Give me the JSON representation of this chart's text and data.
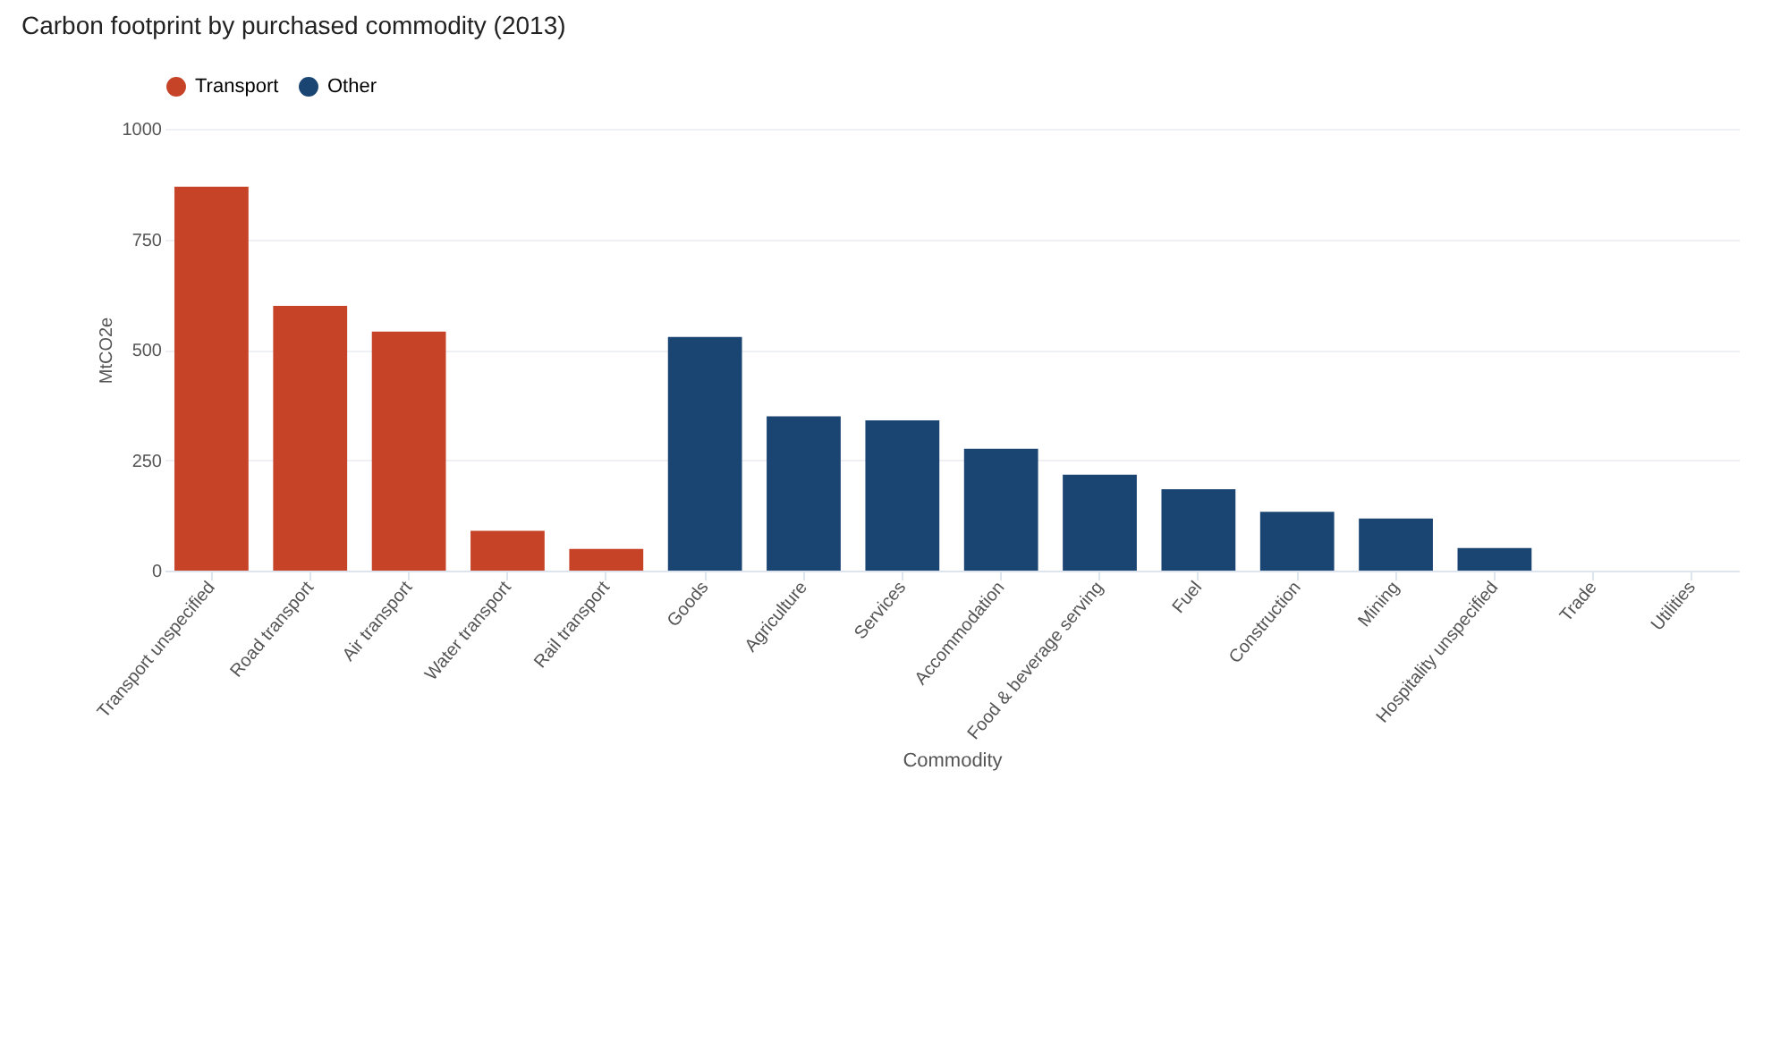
{
  "chart_data": {
    "type": "bar",
    "title": "Carbon footprint by purchased commodity (2013)",
    "xlabel": "Commodity",
    "ylabel": "MtCO2e",
    "categories": [
      "Transport unspecified",
      "Road transport",
      "Air transport",
      "Water transport",
      "Rail transport",
      "Goods",
      "Agriculture",
      "Services",
      "Accommodation",
      "Food & beverage serving",
      "Fuel",
      "Construction",
      "Mining",
      "Hospitality unspecified",
      "Trade",
      "Utilities"
    ],
    "series": [
      {
        "name": "Transport",
        "color": "#c64328",
        "values": [
          869,
          599,
          541,
          90,
          49,
          null,
          null,
          null,
          null,
          null,
          null,
          null,
          null,
          null,
          null,
          null
        ]
      },
      {
        "name": "Other",
        "color": "#1a4472",
        "values": [
          null,
          null,
          null,
          null,
          null,
          529,
          349,
          340,
          276,
          217,
          184,
          133,
          118,
          51,
          0,
          0
        ]
      }
    ],
    "ylim": [
      0,
      1000
    ],
    "yticks": [
      0,
      250,
      500,
      750,
      1000
    ],
    "grid": "y",
    "legend": "top"
  }
}
